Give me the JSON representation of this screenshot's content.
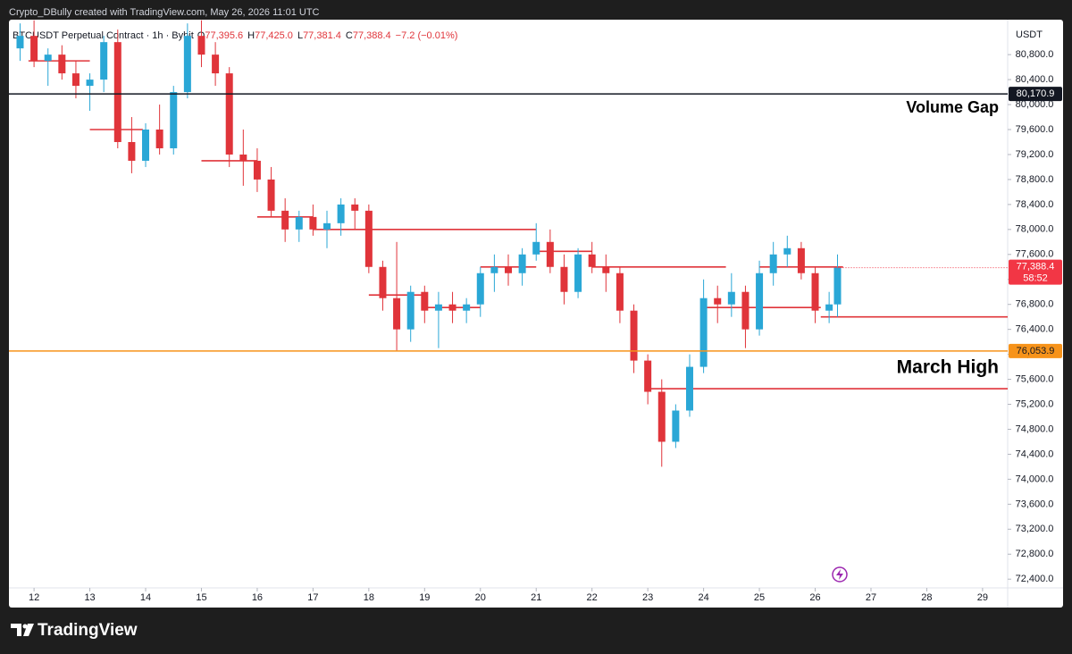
{
  "chart_data": {
    "type": "candlestick",
    "title": "Crypto_DBully created with TradingView.com, May 26, 2026 11:01 UTC",
    "symbol": "BTCUSDT Perpetual Contract · 1h · Bybit",
    "ohlc_labels": [
      {
        "key": "O",
        "value": "77,395.6"
      },
      {
        "key": "H",
        "value": "77,425.0"
      },
      {
        "key": "L",
        "value": "77,381.4"
      },
      {
        "key": "C",
        "value": "77,388.4"
      }
    ],
    "change": "−7.2 (−0.01%)",
    "y_axis_label": "USDT",
    "up_color": "#2aa7d6",
    "down_color": "#e0343a",
    "x": [
      11.75,
      12,
      12.25,
      12.5,
      12.75,
      13,
      13.25,
      13.5,
      13.75,
      14,
      14.25,
      14.5,
      14.75,
      15,
      15.25,
      15.5,
      15.75,
      16,
      16.25,
      16.5,
      16.75,
      17,
      17.25,
      17.5,
      17.75,
      18,
      18.25,
      18.5,
      18.75,
      19,
      19.25,
      19.5,
      19.75,
      20,
      20.25,
      20.5,
      20.75,
      21,
      21.25,
      21.5,
      21.75,
      22,
      22.25,
      22.5,
      22.75,
      23,
      23.25,
      23.5,
      23.75,
      24,
      24.25,
      24.5,
      24.75,
      25,
      25.25,
      25.5,
      25.75,
      26,
      26.25,
      26.4
    ],
    "open": [
      80900,
      81100,
      80700,
      80800,
      80500,
      80300,
      80400,
      81000,
      79400,
      79100,
      79600,
      79300,
      80200,
      81100,
      80800,
      80500,
      79200,
      79100,
      78800,
      78300,
      78000,
      78200,
      78000,
      78100,
      78400,
      78300,
      77400,
      76900,
      76400,
      77000,
      76700,
      76800,
      76700,
      76800,
      77300,
      77400,
      77300,
      77600,
      77800,
      77400,
      77000,
      77600,
      77400,
      77300,
      76700,
      75900,
      75400,
      74600,
      75100,
      75800,
      76900,
      76800,
      77000,
      76400,
      77300,
      77600,
      77700,
      77300,
      76700,
      76800
    ],
    "high": [
      81300,
      81350,
      80900,
      80950,
      80700,
      80500,
      81100,
      81200,
      79800,
      79700,
      80000,
      80300,
      81300,
      81350,
      81000,
      80600,
      79600,
      79300,
      79000,
      78500,
      78300,
      78400,
      78300,
      78500,
      78500,
      78400,
      77500,
      77800,
      77100,
      77100,
      77000,
      77000,
      76900,
      77400,
      77600,
      77600,
      77700,
      78100,
      78000,
      77600,
      77700,
      77800,
      77600,
      77400,
      76800,
      76000,
      75600,
      75200,
      76000,
      77200,
      77100,
      77300,
      77100,
      77500,
      77800,
      77900,
      77800,
      77400,
      77000,
      77600
    ],
    "low": [
      80700,
      80600,
      80300,
      80400,
      80100,
      79900,
      80200,
      79300,
      78900,
      79000,
      79200,
      79200,
      80100,
      80600,
      80300,
      79000,
      78700,
      78600,
      78200,
      77800,
      77800,
      77900,
      77700,
      77900,
      78000,
      77300,
      76700,
      76050,
      76200,
      76500,
      76100,
      76500,
      76500,
      76600,
      77000,
      77100,
      77100,
      77500,
      77300,
      76800,
      76900,
      77300,
      77000,
      76500,
      75700,
      75200,
      74200,
      74500,
      75000,
      75700,
      76500,
      76600,
      76100,
      76300,
      77100,
      77400,
      77200,
      76500,
      76500,
      76600
    ],
    "close": [
      81100,
      80700,
      80800,
      80500,
      80300,
      80400,
      81000,
      79400,
      79100,
      79600,
      79300,
      80200,
      81100,
      80800,
      80500,
      79200,
      79100,
      78800,
      78300,
      78000,
      78200,
      78000,
      78100,
      78400,
      78300,
      77400,
      76900,
      76400,
      77000,
      76700,
      76800,
      76700,
      76800,
      77300,
      77400,
      77300,
      77600,
      77800,
      77400,
      77000,
      77600,
      77400,
      77300,
      76700,
      75900,
      75400,
      74600,
      75100,
      75800,
      76900,
      76800,
      77000,
      76400,
      77300,
      77600,
      77700,
      77300,
      76700,
      76800,
      77388.4
    ],
    "xlim": [
      11.55,
      29.45
    ],
    "xticks": [
      12,
      13,
      14,
      15,
      16,
      17,
      18,
      19,
      20,
      21,
      22,
      23,
      24,
      25,
      26,
      27,
      28,
      29
    ],
    "ylim": [
      72260,
      81360
    ],
    "yticks": [
      {
        "value": 72400,
        "label": "72,400.0"
      },
      {
        "value": 72800,
        "label": "72,800.0"
      },
      {
        "value": 73200,
        "label": "73,200.0"
      },
      {
        "value": 73600,
        "label": "73,600.0"
      },
      {
        "value": 74000,
        "label": "74,000.0"
      },
      {
        "value": 74400,
        "label": "74,400.0"
      },
      {
        "value": 74800,
        "label": "74,800.0"
      },
      {
        "value": 75200,
        "label": "75,200.0"
      },
      {
        "value": 75600,
        "label": "75,600.0"
      },
      {
        "value": 76000,
        "label": "76,000.0"
      },
      {
        "value": 76400,
        "label": "76,400.0"
      },
      {
        "value": 76800,
        "label": "76,800.0"
      },
      {
        "value": 77200,
        "label": "77,200.0"
      },
      {
        "value": 77600,
        "label": "77,600.0"
      },
      {
        "value": 78000,
        "label": "78,000.0"
      },
      {
        "value": 78400,
        "label": "78,400.0"
      },
      {
        "value": 78800,
        "label": "78,800.0"
      },
      {
        "value": 79200,
        "label": "79,200.0"
      },
      {
        "value": 79600,
        "label": "79,600.0"
      },
      {
        "value": 80000,
        "label": "80,000.0"
      },
      {
        "value": 80400,
        "label": "80,400.0"
      },
      {
        "value": 80800,
        "label": "80,800.0"
      }
    ],
    "levels": [
      {
        "name": "Volume Gap",
        "value": 80170.9,
        "label": "80,170.9",
        "color": "#131722"
      },
      {
        "name": "March High",
        "value": 76053.9,
        "label": "76,053.9",
        "color": "#f7931a"
      }
    ],
    "last_price": {
      "value": 77388.4,
      "label": "77,388.4",
      "countdown": "58:52",
      "color": "#f23645"
    },
    "poc_color": "#e0343a",
    "poc_lines": [
      {
        "x": [
          11.9,
          13.0
        ],
        "value": 80700
      },
      {
        "x": [
          13.0,
          13.95
        ],
        "value": 79600
      },
      {
        "x": [
          15.0,
          16.0
        ],
        "value": 79100
      },
      {
        "x": [
          16.0,
          17.0
        ],
        "value": 78200
      },
      {
        "x": [
          17.0,
          21.0
        ],
        "value": 78000
      },
      {
        "x": [
          18.0,
          19.0
        ],
        "value": 76950
      },
      {
        "x": [
          19.0,
          20.0
        ],
        "value": 76750
      },
      {
        "x": [
          20.0,
          21.0
        ],
        "value": 77400
      },
      {
        "x": [
          21.0,
          22.0
        ],
        "value": 77650
      },
      {
        "x": [
          22.0,
          24.4
        ],
        "value": 77400
      },
      {
        "x": [
          23.0,
          29.45
        ],
        "value": 75450
      },
      {
        "x": [
          24.0,
          25.0
        ],
        "value": 76750
      },
      {
        "x": [
          25.0,
          26.5
        ],
        "value": 77400
      },
      {
        "x": [
          25.0,
          26.1
        ],
        "value": 76750
      },
      {
        "x": [
          26.1,
          29.45
        ],
        "value": 76600
      }
    ],
    "brand": "TradingView"
  }
}
